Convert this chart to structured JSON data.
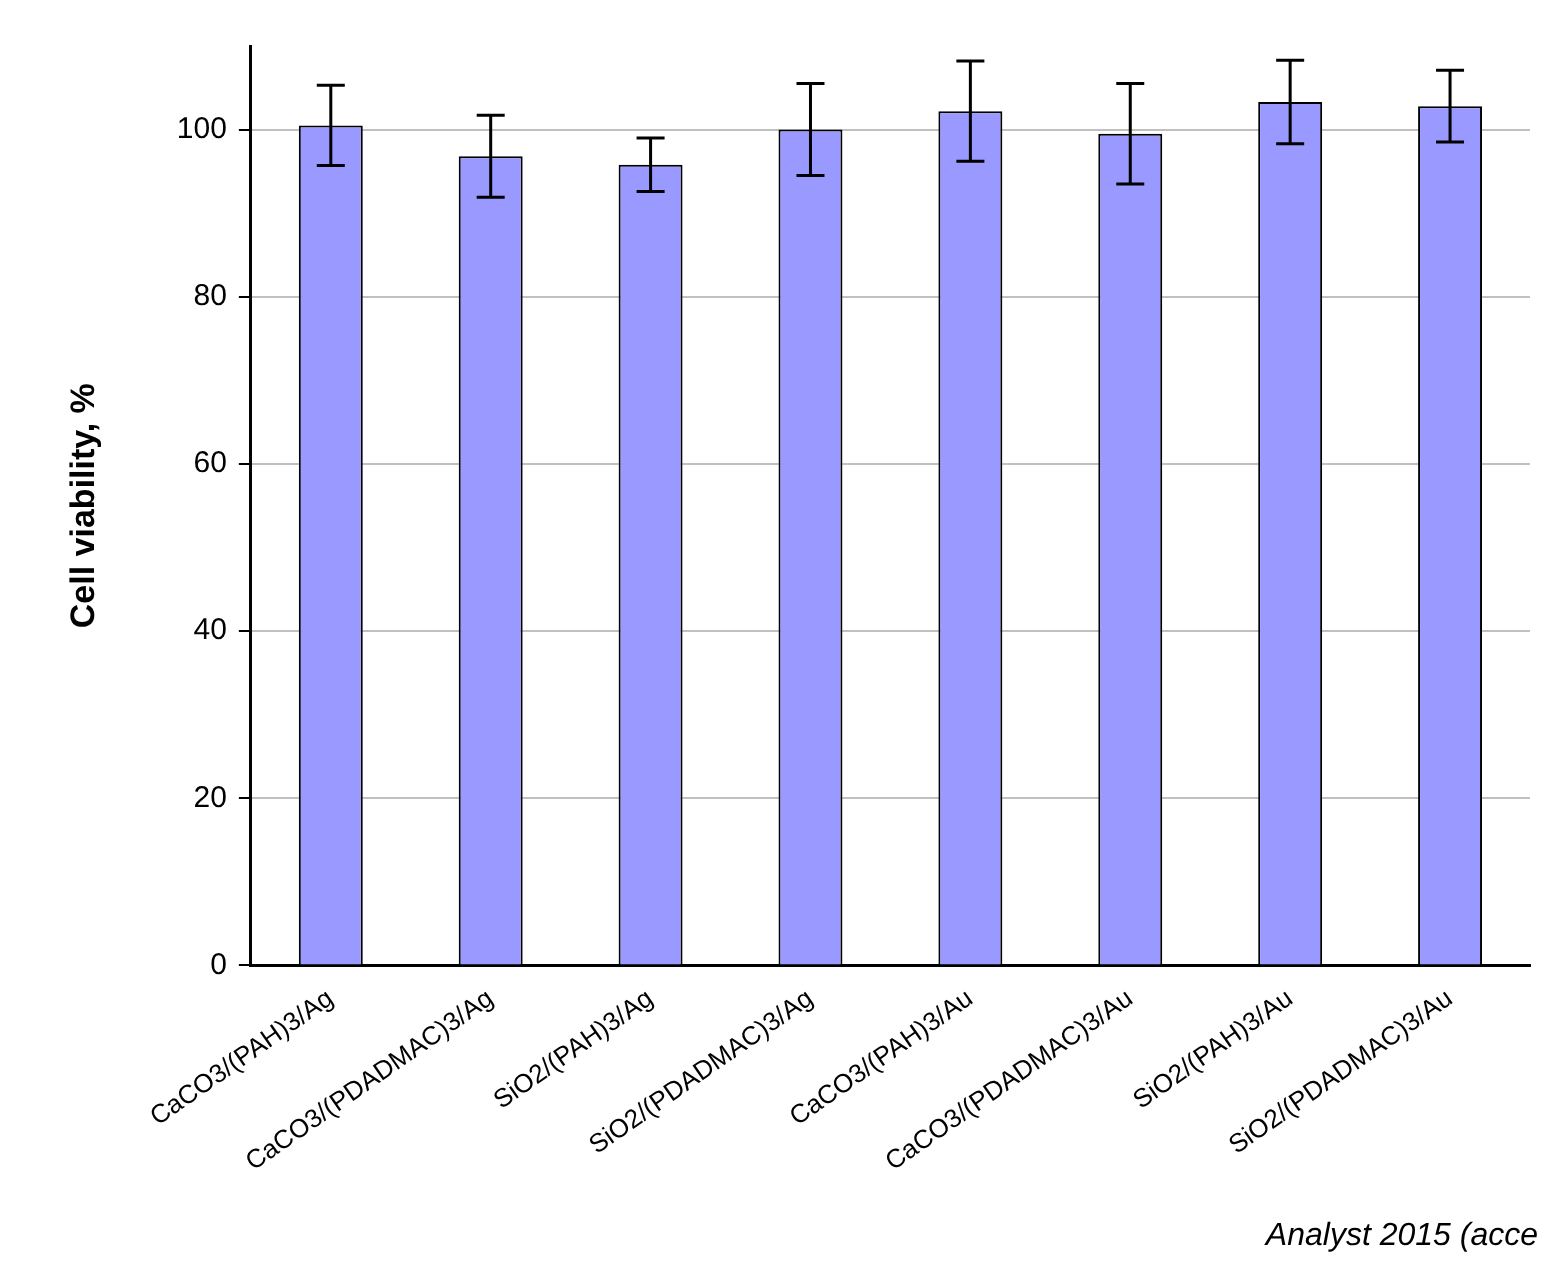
{
  "chart_data": {
    "type": "bar",
    "ylabel": "Cell viability, %",
    "categories": [
      "CaCO3/(PAH)3/Ag",
      "CaCO3/(PDADMAC)3/Ag",
      "SiO2/(PAH)3/Ag",
      "SiO2/(PDADMAC)3/Ag",
      "CaCO3/(PAH)3/Au",
      "CaCO3/(PDADMAC)3/Au",
      "SiO2/(PAH)3/Au",
      "SiO2/(PDADMAC)3/Au"
    ],
    "values": [
      100.5,
      96.8,
      95.8,
      100,
      102.2,
      99.5,
      103.3,
      102.8
    ],
    "errors": [
      4.8,
      4.9,
      3.2,
      5.5,
      6,
      6,
      5,
      4.3
    ],
    "color": "#9999ff",
    "ylim": [
      0,
      110
    ],
    "yticks": [
      0,
      20,
      40,
      60,
      80,
      100
    ],
    "grid": "y",
    "legend": false,
    "annotations": [
      "Analyst 2015 (acce"
    ]
  }
}
